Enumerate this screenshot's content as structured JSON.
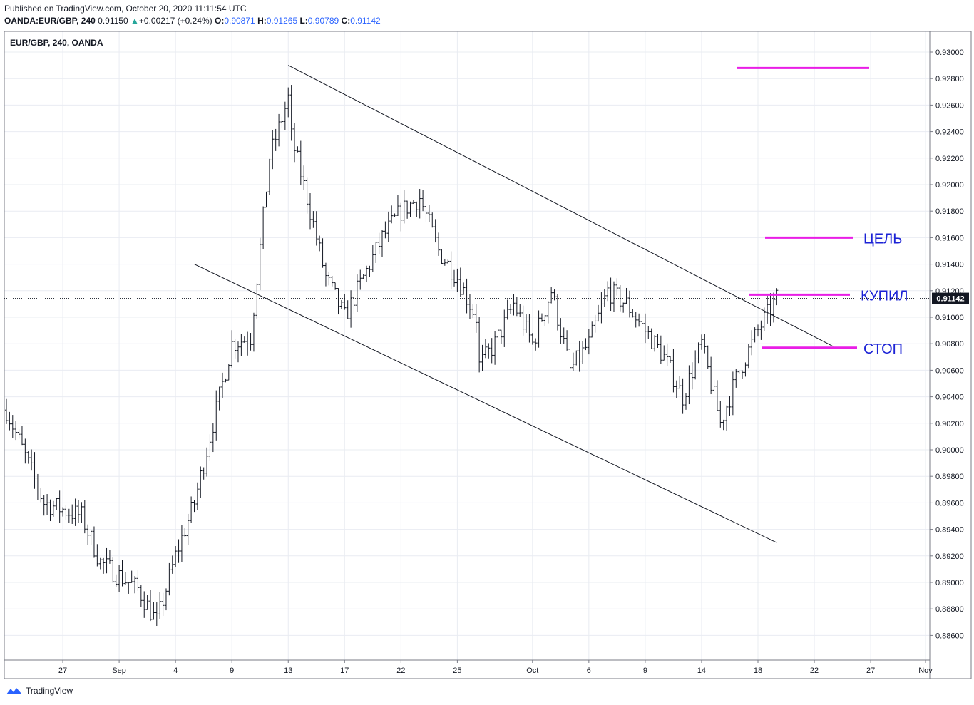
{
  "header": {
    "published": "Published on TradingView.com, October 20, 2020 11:11:54 UTC",
    "symbol_line": "OANDA:EUR/GBP, 240",
    "last": "0.91150",
    "change_arrow": "▲",
    "change": "+0.00217 (+0.24%)",
    "o_label": "O:",
    "o_value": "0.90871",
    "h_label": "H:",
    "h_value": "0.91265",
    "l_label": "L:",
    "l_value": "0.90789",
    "c_label": "C:",
    "c_value": "0.91142"
  },
  "footer": {
    "brand": "TradingView",
    "logo_icon": "tradingview-logo-icon"
  },
  "chart_data": {
    "type": "bar",
    "title": "EUR/GBP, 240, OANDA",
    "ylim": [
      0.8846,
      0.9313
    ],
    "y_ticks": [
      "0.93000",
      "0.92800",
      "0.92600",
      "0.92400",
      "0.92200",
      "0.92000",
      "0.91800",
      "0.91600",
      "0.91400",
      "0.91200",
      "0.91000",
      "0.90800",
      "0.90600",
      "0.90400",
      "0.90200",
      "0.90000",
      "0.89800",
      "0.89600",
      "0.89400",
      "0.89200",
      "0.89000",
      "0.88800",
      "0.88600"
    ],
    "x_ticks": [
      "27",
      "Sep",
      "4",
      "9",
      "13",
      "17",
      "22",
      "25",
      "Oct",
      "6",
      "9",
      "14",
      "18",
      "22",
      "27",
      "Nov"
    ],
    "last_price_label": "0.91142",
    "last_price": 0.91142,
    "grid": true,
    "ohlc_keypoints": [
      [
        "Aug 24",
        0.903
      ],
      [
        "Aug 26",
        0.896
      ],
      [
        "Aug 28",
        0.895
      ],
      [
        "Aug 31",
        0.8915
      ],
      [
        "Sep 2",
        0.8895
      ],
      [
        "Sep 3",
        0.887
      ],
      [
        "Sep 4",
        0.892
      ],
      [
        "Sep 7",
        0.896
      ],
      [
        "Sep 8",
        0.902
      ],
      [
        "Sep 9",
        0.908
      ],
      [
        "Sep 10",
        0.9085
      ],
      [
        "Sep 11",
        0.922
      ],
      [
        "Sep 12",
        0.9265
      ],
      [
        "Sep 14",
        0.9245
      ],
      [
        "Sep 15",
        0.919
      ],
      [
        "Sep 16",
        0.913
      ],
      [
        "Sep 17",
        0.91
      ],
      [
        "Sep 18",
        0.913
      ],
      [
        "Sep 21",
        0.916
      ],
      [
        "Sep 22",
        0.918
      ],
      [
        "Sep 23",
        0.919
      ],
      [
        "Sep 24",
        0.915
      ],
      [
        "Sep 25",
        0.913
      ],
      [
        "Sep 26",
        0.91
      ],
      [
        "Sep 28",
        0.906
      ],
      [
        "Sep 29",
        0.908
      ],
      [
        "Sep 30",
        0.911
      ],
      [
        "Oct 1",
        0.908
      ],
      [
        "Oct 2",
        0.912
      ],
      [
        "Oct 5",
        0.906
      ],
      [
        "Oct 6",
        0.908
      ],
      [
        "Oct 7",
        0.912
      ],
      [
        "Oct 8",
        0.911
      ],
      [
        "Oct 9",
        0.909
      ],
      [
        "Oct 12",
        0.907
      ],
      [
        "Oct 13",
        0.904
      ],
      [
        "Oct 14",
        0.908
      ],
      [
        "Oct 15",
        0.902
      ],
      [
        "Oct 16",
        0.906
      ],
      [
        "Oct 19",
        0.909
      ],
      [
        "Oct 20",
        0.9114
      ]
    ],
    "trendlines": [
      {
        "name": "upper-channel",
        "from": [
          "Sep 12",
          0.929
        ],
        "to": [
          "Oct 23",
          0.9078
        ]
      },
      {
        "name": "lower-channel",
        "from": [
          "Sep 5",
          0.914
        ],
        "to": [
          "Oct 20",
          0.893
        ]
      }
    ],
    "levels": [
      {
        "price": 0.9288,
        "label": "",
        "color": "#e91ee6"
      },
      {
        "price": 0.916,
        "label": "ЦЕЛЬ",
        "color": "#e91ee6"
      },
      {
        "price": 0.9117,
        "label": "КУПИЛ",
        "color": "#e91ee6"
      },
      {
        "price": 0.9077,
        "label": "СТОП",
        "color": "#e91ee6"
      }
    ],
    "colors": {
      "bars": "#131722",
      "level": "#e91ee6",
      "label": "#1c23d6",
      "grid": "#e9ecf2"
    }
  }
}
